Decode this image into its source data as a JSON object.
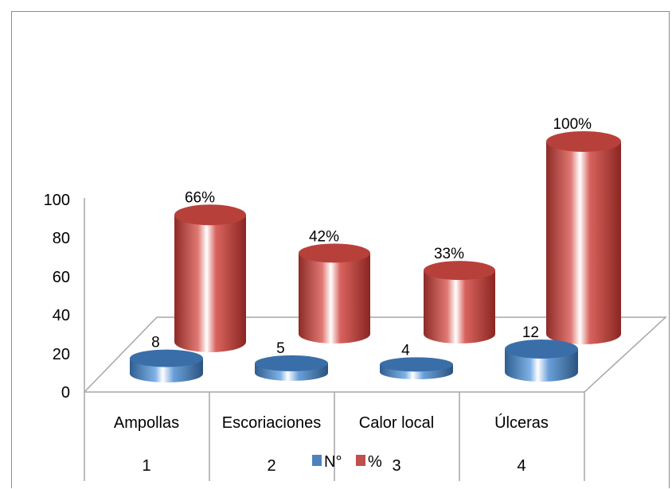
{
  "chart_data": {
    "type": "bar",
    "style": "3d-cylinder",
    "categories": [
      "Ampollas",
      "Escoriaciones",
      "Calor local",
      "Úlceras"
    ],
    "category_numbers": [
      "1",
      "2",
      "3",
      "4"
    ],
    "series": [
      {
        "name": "N°",
        "values": [
          8,
          5,
          4,
          12
        ],
        "labels": [
          "8",
          "5",
          "4",
          "12"
        ],
        "color": "#4f81bd"
      },
      {
        "name": "%",
        "values": [
          66,
          42,
          33,
          100
        ],
        "labels": [
          "66%",
          "42%",
          "33%",
          "100%"
        ],
        "color": "#c0504d"
      }
    ],
    "yticks": [
      "0",
      "20",
      "40",
      "60",
      "80",
      "100"
    ],
    "ylim": [
      0,
      100
    ],
    "legend": "bottom-center",
    "grid": false
  }
}
